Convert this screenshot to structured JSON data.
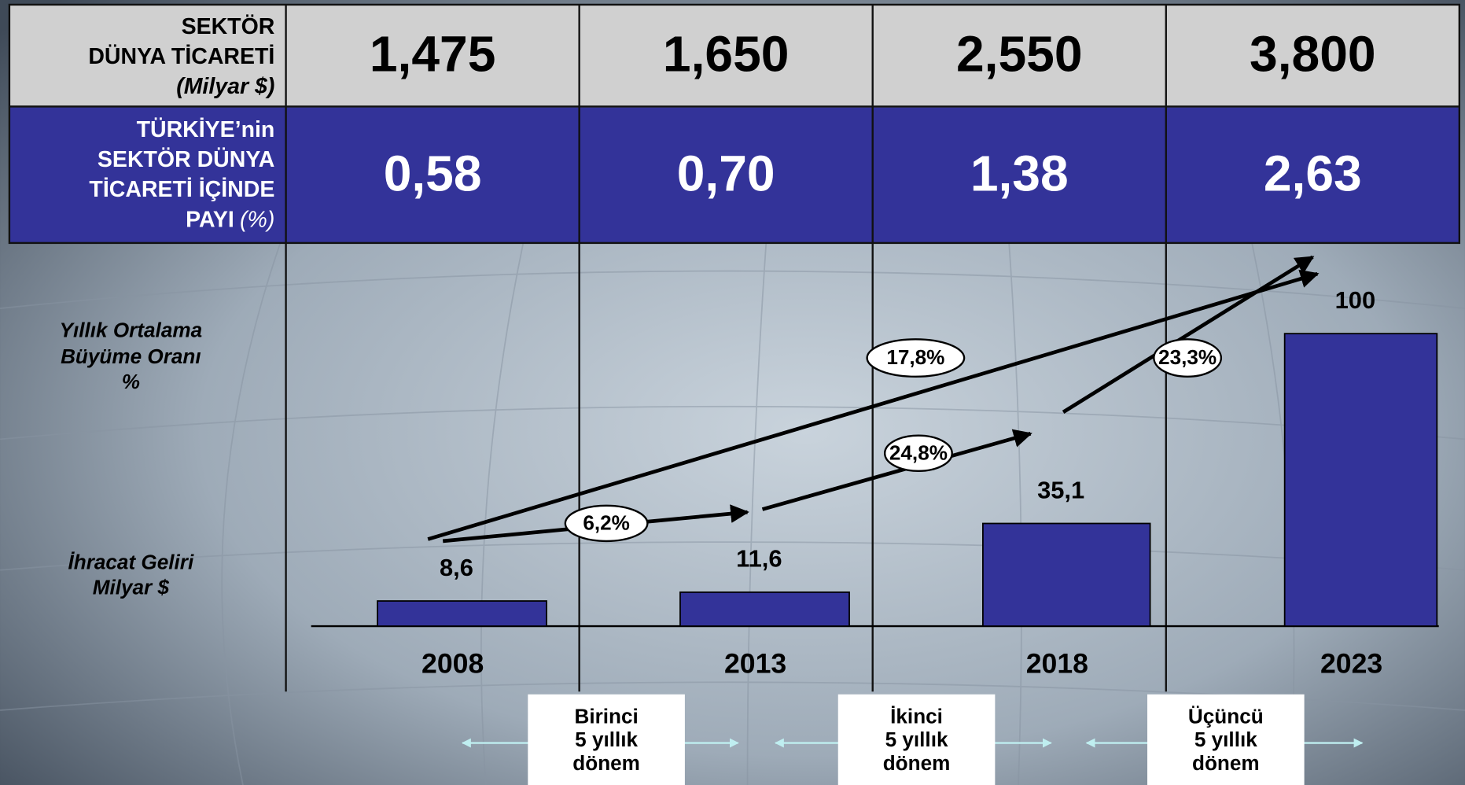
{
  "table": {
    "rows": [
      {
        "label_lines": [
          "SEKTÖR",
          "DÜNYA TİCARETİ"
        ],
        "unit": "(Milyar $)",
        "cells": [
          "1,475",
          "1,650",
          "2,550",
          "3,800"
        ]
      },
      {
        "label_lines": [
          "TÜRKİYE’nin",
          "SEKTÖR DÜNYA",
          "TİCARETİ İÇİNDE",
          "PAYI"
        ],
        "unit": "(%)",
        "cells": [
          "0,58",
          "0,70",
          "1,38",
          "2,63"
        ]
      }
    ]
  },
  "side_labels": {
    "growth": [
      "Yıllık Ortalama",
      "Büyüme Oranı",
      "%"
    ],
    "export": [
      "İhracat Geliri",
      "Milyar $"
    ]
  },
  "chart_data": {
    "type": "bar",
    "categories": [
      "2008",
      "2013",
      "2018",
      "2023"
    ],
    "values": [
      8.6,
      11.6,
      35.1,
      100
    ],
    "value_labels": [
      "8,6",
      "11,6",
      "35,1",
      "100"
    ],
    "color": "#333399",
    "ylim": [
      0,
      100
    ],
    "annotations": [
      "17,8%",
      "6,2%",
      "24,8%",
      "23,3%"
    ]
  },
  "periods": [
    [
      "Birinci",
      "5 yıllık",
      "dönem"
    ],
    [
      "İkinci",
      "5 yıllık",
      "dönem"
    ],
    [
      "Üçüncü",
      "5 yıllık",
      "dönem"
    ]
  ]
}
